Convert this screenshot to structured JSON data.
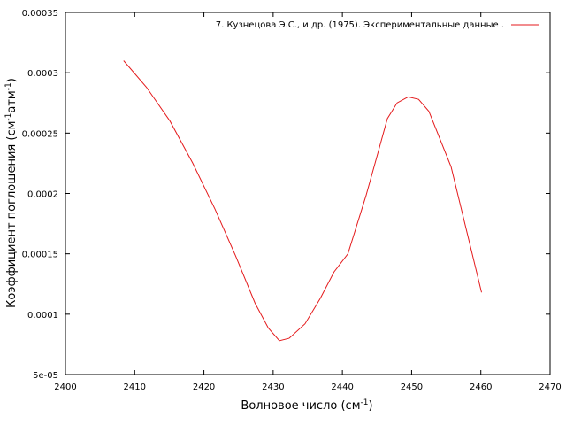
{
  "chart_data": {
    "type": "line",
    "xlabel": "Волновое число (см",
    "xlabel_sup": "-1",
    "xlabel_end": ")",
    "ylabel": "Коэффициент поглощения (см",
    "ylabel_sup1": "-1",
    "ylabel_mid": "атм",
    "ylabel_sup2": "-1",
    "ylabel_end": ")",
    "xlim": [
      2400,
      2470
    ],
    "ylim": [
      5e-05,
      0.00035
    ],
    "x_ticks": [
      2400,
      2410,
      2420,
      2430,
      2440,
      2450,
      2460,
      2470
    ],
    "y_ticks": [
      5e-05,
      0.0001,
      0.00015,
      0.0002,
      0.00025,
      0.0003,
      0.00035
    ],
    "y_tick_labels": [
      "5e-05",
      "0.0001",
      "0.00015",
      "0.0002",
      "0.00025",
      "0.0003",
      "0.00035"
    ],
    "legend_position": "top-right",
    "grid": false,
    "series": [
      {
        "name": "7. Кузнецова Э.С., и др. (1975). Экспериментальные данные .",
        "color": "#e41a1c",
        "x": [
          2408.4,
          2411.7,
          2415.1,
          2418.4,
          2421.6,
          2424.6,
          2427.4,
          2429.3,
          2430.9,
          2432.3,
          2434.6,
          2436.8,
          2438.8,
          2440.8,
          2443.4,
          2445.1,
          2446.5,
          2447.9,
          2449.5,
          2451.0,
          2452.5,
          2455.7,
          2460.1
        ],
        "y": [
          0.00031,
          0.000288,
          0.00026,
          0.000225,
          0.000187,
          0.000148,
          0.000109,
          8.85e-05,
          7.8e-05,
          8e-05,
          9.2e-05,
          0.000113,
          0.000135,
          0.00015,
          0.000198,
          0.000233,
          0.000262,
          0.000275,
          0.00028,
          0.000278,
          0.000268,
          0.000222,
          0.000118
        ]
      }
    ]
  }
}
